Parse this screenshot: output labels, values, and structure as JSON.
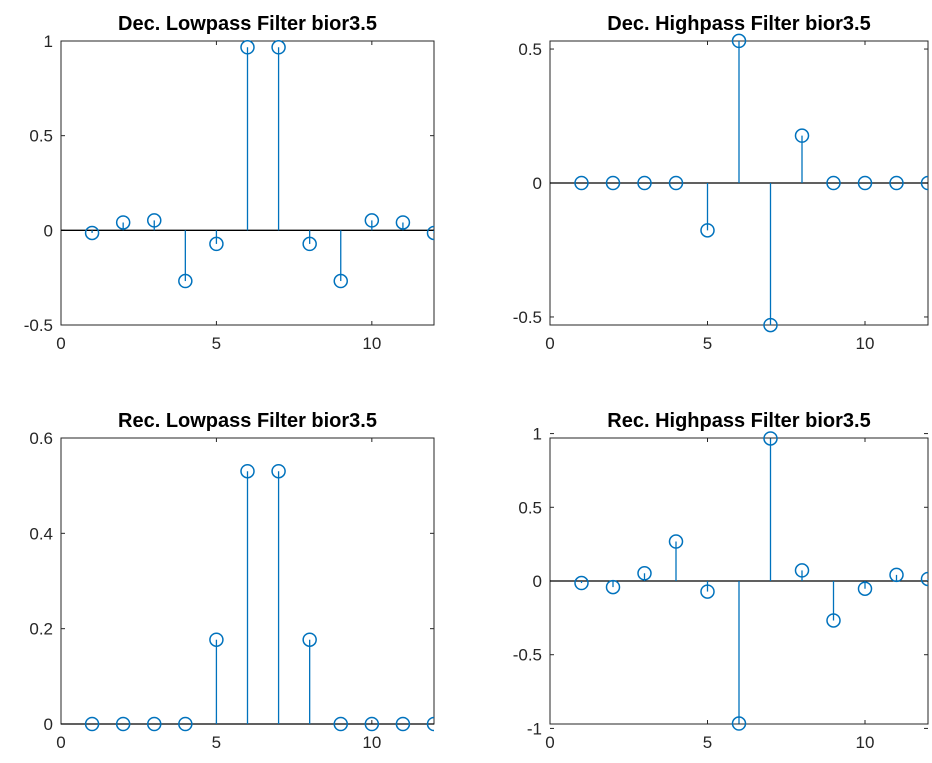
{
  "chart_data": [
    {
      "type": "stem",
      "title": "Dec. Lowpass Filter bior3.5",
      "x": [
        1,
        2,
        3,
        4,
        5,
        6,
        7,
        8,
        9,
        10,
        11,
        12
      ],
      "values": [
        -0.0138,
        0.0414,
        0.0525,
        -0.2679,
        -0.0718,
        0.9667,
        0.9667,
        -0.0718,
        -0.2679,
        0.0525,
        0.0414,
        -0.0138
      ],
      "xlim": [
        0,
        12
      ],
      "ylim": [
        -0.5,
        1
      ],
      "xticks": [
        0,
        5,
        10
      ],
      "xtick_labels": [
        "0",
        "5",
        "10"
      ],
      "yticks": [
        -0.5,
        0,
        0.5,
        1
      ],
      "ytick_labels": [
        "-0.5",
        "0",
        "0.5",
        "1"
      ],
      "color": "#0072BD"
    },
    {
      "type": "stem",
      "title": "Dec. Highpass Filter bior3.5",
      "x": [
        1,
        2,
        3,
        4,
        5,
        6,
        7,
        8,
        9,
        10,
        11,
        12
      ],
      "values": [
        0,
        0,
        0,
        0,
        -0.1768,
        0.5303,
        -0.5303,
        0.1768,
        0,
        0,
        0,
        0
      ],
      "xlim": [
        0,
        12
      ],
      "ylim": [
        -0.53,
        0.53
      ],
      "xticks": [
        0,
        5,
        10
      ],
      "xtick_labels": [
        "0",
        "5",
        "10"
      ],
      "yticks": [
        -0.5,
        0,
        0.5
      ],
      "ytick_labels": [
        "-0.5",
        "0",
        "0.5"
      ],
      "color": "#0072BD"
    },
    {
      "type": "stem",
      "title": "Rec. Lowpass Filter bior3.5",
      "x": [
        1,
        2,
        3,
        4,
        5,
        6,
        7,
        8,
        9,
        10,
        11,
        12
      ],
      "values": [
        0,
        0,
        0,
        0,
        0.1768,
        0.5303,
        0.5303,
        0.1768,
        0,
        0,
        0,
        0
      ],
      "xlim": [
        0,
        12
      ],
      "ylim": [
        0,
        0.6
      ],
      "xticks": [
        0,
        5,
        10
      ],
      "xtick_labels": [
        "0",
        "5",
        "10"
      ],
      "yticks": [
        0,
        0.2,
        0.4,
        0.6
      ],
      "ytick_labels": [
        "0",
        "0.2",
        "0.4",
        "0.6"
      ],
      "color": "#0072BD"
    },
    {
      "type": "stem",
      "title": "Rec. Highpass Filter bior3.5",
      "x": [
        1,
        2,
        3,
        4,
        5,
        6,
        7,
        8,
        9,
        10,
        11,
        12
      ],
      "values": [
        -0.0138,
        -0.0414,
        0.0525,
        0.2679,
        -0.0718,
        -0.9667,
        0.9667,
        0.0718,
        -0.2679,
        -0.0525,
        0.0414,
        0.0138
      ],
      "xlim": [
        0,
        12
      ],
      "ylim": [
        -0.97,
        0.97
      ],
      "xticks": [
        0,
        5,
        10
      ],
      "xtick_labels": [
        "0",
        "5",
        "10"
      ],
      "yticks": [
        -1,
        -0.5,
        0,
        0.5,
        1
      ],
      "ytick_labels": [
        "-1",
        "-0.5",
        "0",
        "0.5",
        "1"
      ],
      "color": "#0072BD"
    }
  ]
}
